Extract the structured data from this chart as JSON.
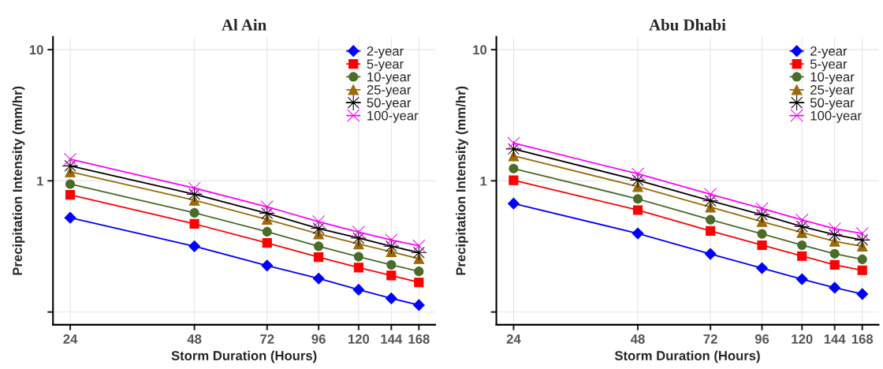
{
  "chart_data": [
    {
      "type": "line",
      "title": "Al Ain",
      "xlabel": "Storm Duration (Hours)",
      "ylabel": "Precipitation Intensity (mm/hr)",
      "log": "xy",
      "grid": true,
      "legend": "top right",
      "x": [
        24,
        48,
        72,
        96,
        120,
        144,
        168
      ],
      "xlim": [
        21.8,
        184
      ],
      "xticks": [
        24,
        48,
        72,
        96,
        120,
        144,
        168
      ],
      "ylim": [
        0.08,
        12.5
      ],
      "yticks": [
        10,
        1,
        {
          "value": 0.1,
          "label": null
        }
      ],
      "series": [
        {
          "name": "2-year",
          "color": "#0000ff",
          "marker": "diamond",
          "values": [
            0.523,
            0.317,
            0.226,
            0.18,
            0.148,
            0.127,
            0.113
          ]
        },
        {
          "name": "5-year",
          "color": "#ff0000",
          "marker": "square",
          "values": [
            0.782,
            0.47,
            0.336,
            0.262,
            0.218,
            0.19,
            0.168
          ]
        },
        {
          "name": "10-year",
          "color": "#4a6b2a",
          "marker": "circle",
          "values": [
            0.944,
            0.57,
            0.409,
            0.317,
            0.264,
            0.229,
            0.204
          ]
        },
        {
          "name": "25-year",
          "color": "#9c6a0a",
          "marker": "triangle",
          "values": [
            1.17,
            0.711,
            0.508,
            0.394,
            0.33,
            0.288,
            0.255
          ]
        },
        {
          "name": "50-year",
          "color": "#000000",
          "marker": "star",
          "values": [
            1.3,
            0.79,
            0.565,
            0.433,
            0.366,
            0.317,
            0.284
          ]
        },
        {
          "name": "100-year",
          "color": "#ff00ff",
          "marker": "cross",
          "values": [
            1.46,
            0.879,
            0.634,
            0.489,
            0.407,
            0.354,
            0.32
          ]
        }
      ]
    },
    {
      "type": "line",
      "title": "Abu Dhabi",
      "xlabel": "Storm Duration (Hours)",
      "ylabel": "Precipitation Intensity (mm/hr)",
      "log": "xy",
      "grid": true,
      "legend": "top right",
      "x": [
        24,
        48,
        72,
        96,
        120,
        144,
        168
      ],
      "xlim": [
        21.8,
        184
      ],
      "xticks": [
        24,
        48,
        72,
        96,
        120,
        144,
        168
      ],
      "ylim": [
        0.08,
        12.5
      ],
      "yticks": [
        10,
        1,
        {
          "value": 0.1,
          "label": null
        }
      ],
      "series": [
        {
          "name": "2-year",
          "color": "#0000ff",
          "marker": "diamond",
          "values": [
            0.671,
            0.397,
            0.277,
            0.216,
            0.178,
            0.153,
            0.137
          ]
        },
        {
          "name": "5-year",
          "color": "#ff0000",
          "marker": "square",
          "values": [
            1.01,
            0.598,
            0.415,
            0.323,
            0.267,
            0.229,
            0.208
          ]
        },
        {
          "name": "10-year",
          "color": "#4a6b2a",
          "marker": "circle",
          "values": [
            1.24,
            0.728,
            0.505,
            0.394,
            0.323,
            0.278,
            0.252
          ]
        },
        {
          "name": "25-year",
          "color": "#9c6a0a",
          "marker": "triangle",
          "values": [
            1.55,
            0.904,
            0.63,
            0.489,
            0.403,
            0.346,
            0.317
          ]
        },
        {
          "name": "50-year",
          "color": "#000000",
          "marker": "star",
          "values": [
            1.75,
            1.01,
            0.704,
            0.551,
            0.448,
            0.388,
            0.354
          ]
        },
        {
          "name": "100-year",
          "color": "#ff00ff",
          "marker": "cross",
          "values": [
            1.94,
            1.13,
            0.79,
            0.615,
            0.503,
            0.431,
            0.397
          ]
        }
      ]
    }
  ]
}
